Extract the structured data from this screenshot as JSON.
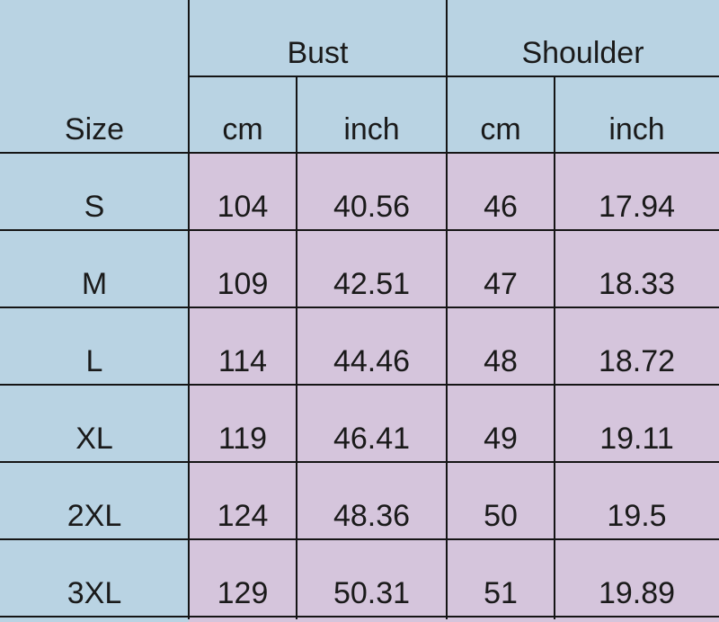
{
  "header": {
    "size_label": "Size",
    "groups": [
      "Bust",
      "Shoulder"
    ],
    "units": [
      "cm",
      "inch",
      "cm",
      "inch"
    ]
  },
  "rows": [
    {
      "size": "S",
      "bust_cm": "104",
      "bust_inch": "40.56",
      "shoulder_cm": "46",
      "shoulder_inch": "17.94"
    },
    {
      "size": "M",
      "bust_cm": "109",
      "bust_inch": "42.51",
      "shoulder_cm": "47",
      "shoulder_inch": "18.33"
    },
    {
      "size": "L",
      "bust_cm": "114",
      "bust_inch": "44.46",
      "shoulder_cm": "48",
      "shoulder_inch": "18.72"
    },
    {
      "size": "XL",
      "bust_cm": "119",
      "bust_inch": "46.41",
      "shoulder_cm": "49",
      "shoulder_inch": "19.11"
    },
    {
      "size": "2XL",
      "bust_cm": "124",
      "bust_inch": "48.36",
      "shoulder_cm": "50",
      "shoulder_inch": "19.5"
    },
    {
      "size": "3XL",
      "bust_cm": "129",
      "bust_inch": "50.31",
      "shoulder_cm": "51",
      "shoulder_inch": "19.89"
    }
  ],
  "colors": {
    "header_bg": "#b9d3e3",
    "data_bg": "#d5c5dc",
    "grid_line": "#151515"
  }
}
